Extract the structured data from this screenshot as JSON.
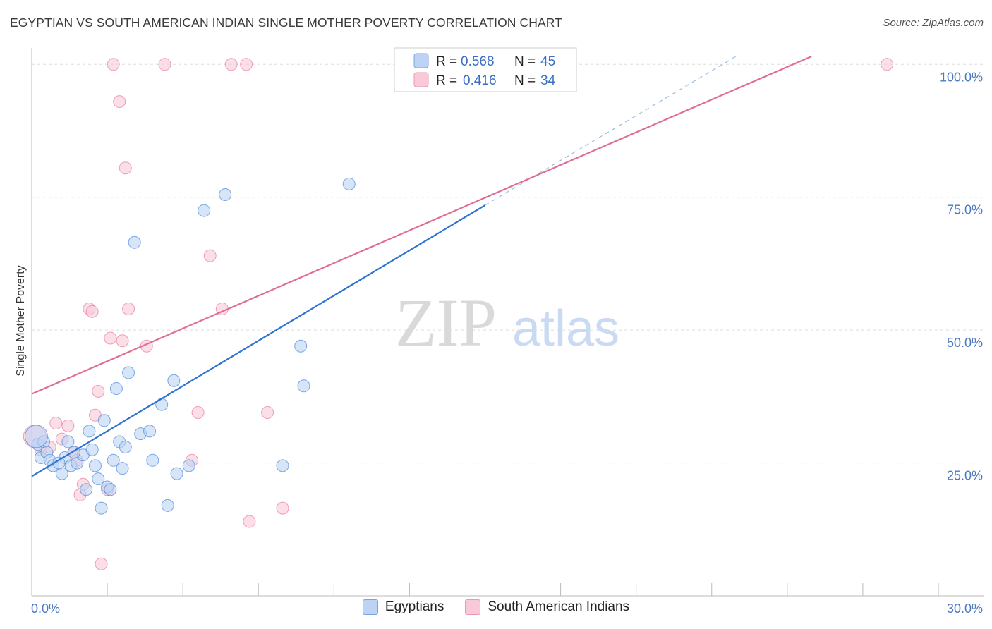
{
  "header": {
    "title": "EGYPTIAN VS SOUTH AMERICAN INDIAN SINGLE MOTHER POVERTY CORRELATION CHART",
    "source": "Source: ZipAtlas.com"
  },
  "watermark": {
    "zip": "ZIP",
    "atlas": "atlas"
  },
  "legend": {
    "r_label": "R =",
    "n_label": "N =",
    "series": [
      {
        "name": "Egyptians",
        "r": "0.568",
        "n": "45",
        "color": "#4a86d9"
      },
      {
        "name": "South American Indians",
        "r": "0.416",
        "n": "34",
        "color": "#e8799e"
      }
    ]
  },
  "chart_data": {
    "type": "scatter",
    "title": "EGYPTIAN VS SOUTH AMERICAN INDIAN SINGLE MOTHER POVERTY CORRELATION CHART",
    "xlabel": "",
    "ylabel": "Single Mother Poverty",
    "xlim": [
      0,
      30
    ],
    "ylim": [
      0,
      100
    ],
    "x_tick_labels": [
      "0.0%",
      "30.0%"
    ],
    "y_tick_labels": [
      "25.0%",
      "50.0%",
      "75.0%",
      "100.0%"
    ],
    "y_ticks": [
      25,
      50,
      75,
      100
    ],
    "grid": true,
    "legend_position": "top-center",
    "series": [
      {
        "name": "Egyptians",
        "color": "#4a86d9",
        "fill": "#bcd3f5",
        "trend": {
          "x0": 0,
          "y0": 22.5,
          "x1": 15,
          "y1": 73.5,
          "dashed_to_x": 23.3,
          "dashed_to_y": 101.5
        },
        "points": [
          [
            0.2,
            28.5
          ],
          [
            0.3,
            26
          ],
          [
            0.4,
            29
          ],
          [
            0.5,
            27
          ],
          [
            0.6,
            25.5
          ],
          [
            0.7,
            24.5
          ],
          [
            1.0,
            23
          ],
          [
            1.1,
            26
          ],
          [
            1.2,
            29
          ],
          [
            1.3,
            24.5
          ],
          [
            1.5,
            25
          ],
          [
            1.7,
            26.5
          ],
          [
            1.8,
            20
          ],
          [
            1.9,
            31
          ],
          [
            2.0,
            27.5
          ],
          [
            2.1,
            24.5
          ],
          [
            2.2,
            22
          ],
          [
            2.3,
            16.5
          ],
          [
            2.4,
            33
          ],
          [
            2.5,
            20.5
          ],
          [
            2.6,
            20
          ],
          [
            2.7,
            25.5
          ],
          [
            2.8,
            39
          ],
          [
            2.9,
            29
          ],
          [
            3.0,
            24
          ],
          [
            3.1,
            28
          ],
          [
            3.2,
            42
          ],
          [
            3.4,
            66.5
          ],
          [
            3.6,
            30.5
          ],
          [
            3.9,
            31
          ],
          [
            4.0,
            25.5
          ],
          [
            4.3,
            36
          ],
          [
            4.5,
            17
          ],
          [
            4.7,
            40.5
          ],
          [
            4.8,
            23
          ],
          [
            5.2,
            24.5
          ],
          [
            5.7,
            72.5
          ],
          [
            6.4,
            75.5
          ],
          [
            8.3,
            24.5
          ],
          [
            8.9,
            47
          ],
          [
            9.0,
            39.5
          ],
          [
            10.5,
            77.5
          ],
          [
            0.15,
            30
          ],
          [
            0.9,
            25
          ],
          [
            1.4,
            27
          ]
        ]
      },
      {
        "name": "South American Indians",
        "color": "#e8799e",
        "fill": "#f9c9d7",
        "trend": {
          "x0": 0,
          "y0": 38,
          "x1": 25.8,
          "y1": 101.5
        },
        "points": [
          [
            0.1,
            30
          ],
          [
            0.3,
            27.5
          ],
          [
            0.6,
            28
          ],
          [
            0.8,
            32.5
          ],
          [
            1.0,
            29.5
          ],
          [
            1.2,
            32
          ],
          [
            1.4,
            27
          ],
          [
            1.5,
            25.5
          ],
          [
            1.6,
            19
          ],
          [
            1.7,
            21
          ],
          [
            1.9,
            54
          ],
          [
            2.0,
            53.5
          ],
          [
            2.1,
            34
          ],
          [
            2.2,
            38.5
          ],
          [
            2.3,
            6
          ],
          [
            2.5,
            20
          ],
          [
            2.6,
            48.5
          ],
          [
            2.7,
            100
          ],
          [
            2.9,
            93
          ],
          [
            3.0,
            48
          ],
          [
            3.1,
            80.5
          ],
          [
            3.2,
            54
          ],
          [
            3.8,
            47
          ],
          [
            4.4,
            100
          ],
          [
            5.3,
            25.5
          ],
          [
            5.5,
            34.5
          ],
          [
            5.9,
            64
          ],
          [
            6.3,
            54
          ],
          [
            6.6,
            100
          ],
          [
            7.1,
            100
          ],
          [
            7.2,
            14
          ],
          [
            7.8,
            34.5
          ],
          [
            8.3,
            16.5
          ],
          [
            28.3,
            100
          ]
        ]
      }
    ]
  }
}
